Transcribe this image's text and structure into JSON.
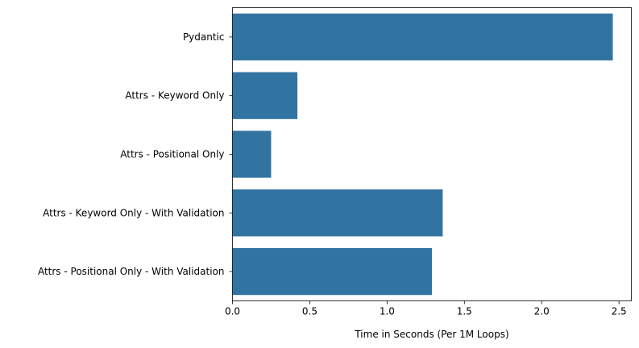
{
  "chart_data": {
    "type": "bar",
    "orientation": "horizontal",
    "title": "",
    "xlabel": "Time in Seconds (Per 1M Loops)",
    "ylabel": "",
    "categories": [
      "Pydantic",
      "Attrs - Keyword Only",
      "Attrs - Positional Only",
      "Attrs - Keyword Only - With Validation",
      "Attrs - Positional Only - With Validation"
    ],
    "values": [
      2.46,
      0.42,
      0.25,
      1.36,
      1.29
    ],
    "xlim": [
      0,
      2.58
    ],
    "xticks": [
      "0.0",
      "0.5",
      "1.0",
      "1.5",
      "2.0",
      "2.5"
    ],
    "bar_color": "#3274a1",
    "grid": false,
    "legend": "none"
  }
}
